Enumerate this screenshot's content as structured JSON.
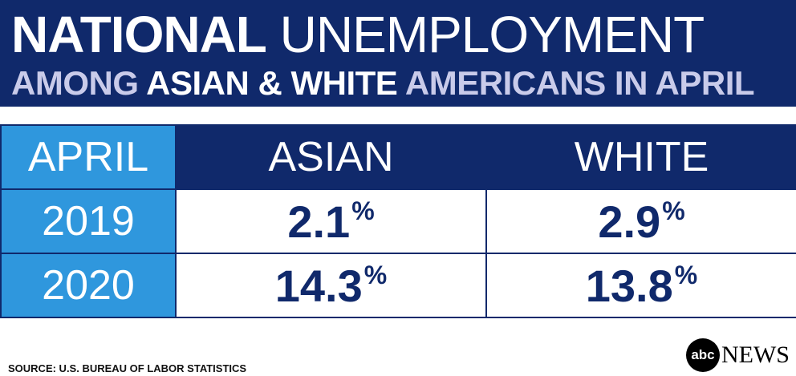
{
  "header": {
    "title": {
      "bold": "NATIONAL",
      "light": "UNEMPLOYMENT"
    },
    "subtitle": {
      "part1": "AMONG",
      "highlight": "ASIAN & WHITE",
      "part2": "AMERICANS IN APRIL"
    }
  },
  "table": {
    "columns": [
      "APRIL",
      "ASIAN",
      "WHITE"
    ],
    "rows": [
      [
        "2019",
        {
          "value": "2.1",
          "unit": "%"
        },
        {
          "value": "2.9",
          "unit": "%"
        }
      ],
      [
        "2020",
        {
          "value": "14.3",
          "unit": "%"
        },
        {
          "value": "13.8",
          "unit": "%"
        }
      ]
    ]
  },
  "footer": {
    "source": "SOURCE: U.S. BUREAU OF LABOR STATISTICS",
    "logo": {
      "mark": "abc",
      "text": "NEWS"
    }
  }
}
